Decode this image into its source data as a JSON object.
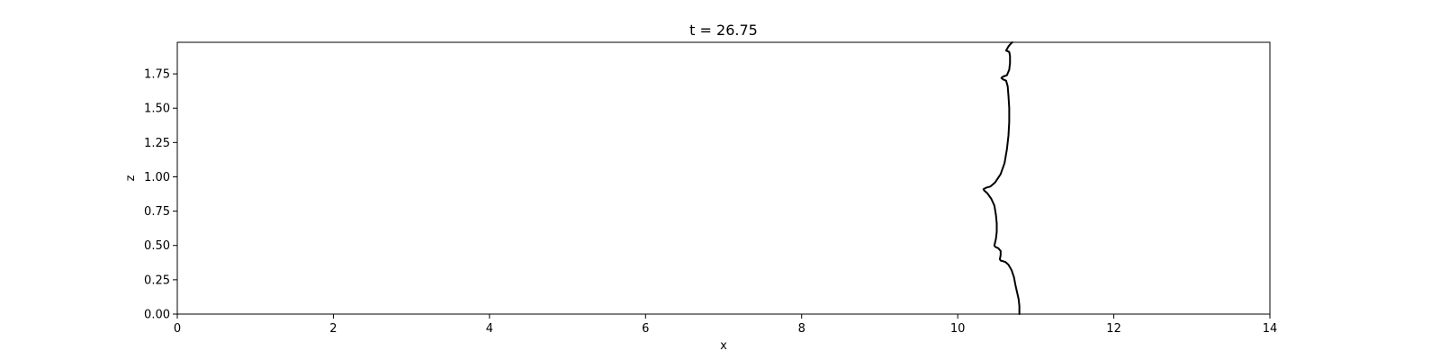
{
  "chart_data": {
    "type": "line",
    "title": "t = 26.75",
    "xlabel": "x",
    "ylabel": "z",
    "xlim": [
      0,
      14
    ],
    "ylim": [
      0,
      1.98
    ],
    "grid": false,
    "x_ticks": [
      0,
      2,
      4,
      6,
      8,
      10,
      12,
      14
    ],
    "x_tick_labels": [
      "0",
      "2",
      "4",
      "6",
      "8",
      "10",
      "12",
      "14"
    ],
    "y_ticks": [
      0,
      0.25,
      0.5,
      0.75,
      1.0,
      1.25,
      1.5,
      1.75
    ],
    "y_tick_labels": [
      "0.00",
      "0.25",
      "0.50",
      "0.75",
      "1.00",
      "1.25",
      "1.50",
      "1.75"
    ],
    "series": [
      {
        "color": "#000000",
        "points": [
          [
            10.79,
            0.0
          ],
          [
            10.79,
            0.06
          ],
          [
            10.78,
            0.11
          ],
          [
            10.76,
            0.16
          ],
          [
            10.74,
            0.21
          ],
          [
            10.72,
            0.27
          ],
          [
            10.69,
            0.32
          ],
          [
            10.65,
            0.36
          ],
          [
            10.61,
            0.38
          ],
          [
            10.55,
            0.39
          ],
          [
            10.54,
            0.4
          ],
          [
            10.55,
            0.43
          ],
          [
            10.55,
            0.46
          ],
          [
            10.52,
            0.48
          ],
          [
            10.48,
            0.49
          ],
          [
            10.47,
            0.5
          ],
          [
            10.49,
            0.55
          ],
          [
            10.5,
            0.6
          ],
          [
            10.5,
            0.66
          ],
          [
            10.49,
            0.72
          ],
          [
            10.47,
            0.79
          ],
          [
            10.43,
            0.84
          ],
          [
            10.38,
            0.88
          ],
          [
            10.34,
            0.9
          ],
          [
            10.33,
            0.91
          ],
          [
            10.36,
            0.92
          ],
          [
            10.42,
            0.93
          ],
          [
            10.48,
            0.96
          ],
          [
            10.55,
            1.02
          ],
          [
            10.6,
            1.1
          ],
          [
            10.63,
            1.2
          ],
          [
            10.65,
            1.3
          ],
          [
            10.66,
            1.4
          ],
          [
            10.66,
            1.5
          ],
          [
            10.65,
            1.59
          ],
          [
            10.64,
            1.66
          ],
          [
            10.62,
            1.7
          ],
          [
            10.58,
            1.71
          ],
          [
            10.56,
            1.72
          ],
          [
            10.58,
            1.73
          ],
          [
            10.63,
            1.74
          ],
          [
            10.66,
            1.78
          ],
          [
            10.67,
            1.83
          ],
          [
            10.67,
            1.88
          ],
          [
            10.66,
            1.91
          ],
          [
            10.62,
            1.92
          ],
          [
            10.65,
            1.95
          ],
          [
            10.68,
            1.97
          ],
          [
            10.7,
            1.98
          ]
        ]
      }
    ]
  }
}
